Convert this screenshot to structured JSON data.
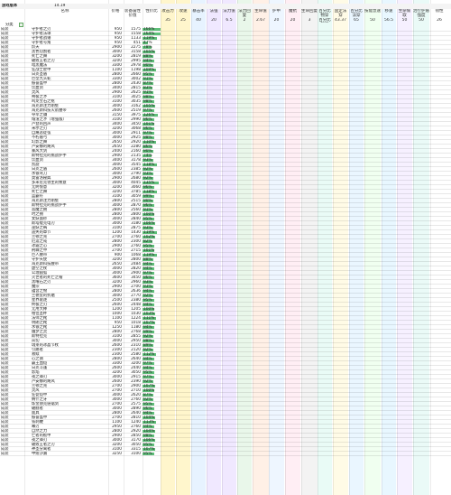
{
  "sheet": {
    "title": "游戏版本",
    "version": "14.19",
    "filter_label": "分类",
    "filter_icon": "filter-dropdown-icon",
    "colors": {
      "bar_green": "#5fbf7a",
      "header_bg": "#f4f4f4"
    }
  },
  "headers": [
    "名称",
    "价格",
    "装备属性价值",
    "性价比",
    "攻击力",
    "攻速",
    "暴击率",
    "法强",
    "法力值",
    "法力回复",
    "生命值",
    "护甲",
    "魔抗",
    "生命回复",
    "百分比物穿",
    "固定法穿",
    "百分比法穿",
    "技能急速",
    "移速",
    "生命偷取",
    "治疗护盾强度",
    "韧性"
  ],
  "summary": [
    "",
    "",
    "",
    "",
    "35",
    "25",
    "40",
    "20",
    "6.5",
    "2",
    "2.67",
    "20",
    "20",
    "3",
    "百分比物穿",
    "43.37",
    "65",
    "50",
    "56.5",
    "50",
    "50",
    "26"
  ],
  "rows": [
    {
      "name": "守护者之刃",
      "cost": "950",
      "val": "1575",
      "pct": "166%",
      "pv": "166"
    },
    {
      "name": "守护者法球",
      "cost": "950",
      "val": "1558",
      "pct": "164%",
      "pv": "164"
    },
    {
      "name": "守护者战锤",
      "cost": "950",
      "val": "1133",
      "pct": "119%",
      "pv": "119"
    },
    {
      "name": "守护者号角",
      "cost": "950",
      "val": "451",
      "pct": "47%",
      "pv": "47"
    },
    {
      "name": "炽天",
      "cost": "2900",
      "val": "2275",
      "pct": "78%",
      "pv": "78"
    },
    {
      "name": "黑色切割者",
      "cost": "3000",
      "val": "3158",
      "pct": "105%",
      "pv": "105"
    },
    {
      "name": "死亡之舞",
      "cost": "3200",
      "val": "2819",
      "pct": "88%",
      "pv": "88"
    },
    {
      "name": "破败王者之刃",
      "cost": "3200",
      "val": "2995",
      "pct": "94%",
      "pv": "94"
    },
    {
      "name": "暗黑魔法",
      "cost": "3300",
      "val": "2978",
      "pct": "90%",
      "pv": "90"
    },
    {
      "name": "狂战士胫甲",
      "cost": "1100",
      "val": "1198",
      "pct": "109%",
      "pv": "109"
    },
    {
      "name": "日炎圣盾",
      "cost": "2800",
      "val": "2660",
      "pct": "95%",
      "pv": "95"
    },
    {
      "name": "巨型九头蛇",
      "cost": "3300",
      "val": "3002",
      "pct": "91%",
      "pv": "91"
    },
    {
      "name": "振奋盔甲",
      "cost": "2800",
      "val": "2430",
      "pct": "87%",
      "pv": "87"
    },
    {
      "name": "饮血剑",
      "cost": "3400",
      "val": "2815",
      "pct": "83%",
      "pv": "83"
    },
    {
      "name": "灵风",
      "cost": "2900",
      "val": "2625",
      "pct": "91%",
      "pv": "91"
    },
    {
      "name": "朔极之矛",
      "cost": "3100",
      "val": "3025",
      "pct": "98%",
      "pv": "98"
    },
    {
      "name": "鸣龙宝石之枢",
      "cost": "3100",
      "val": "3035",
      "pct": "98%",
      "pv": "98"
    },
    {
      "name": "海克斯注力刚壁",
      "cost": "3000",
      "val": "3162",
      "pct": "105%",
      "pv": "105"
    },
    {
      "name": "海克斯科技火箭腰带",
      "cost": "2600",
      "val": "2519",
      "pct": "97%",
      "pv": "97"
    },
    {
      "name": "夺萃之镰",
      "cost": "3150",
      "val": "3975",
      "pct": "126%",
      "pv": "126"
    },
    {
      "name": "熔渣之矛（增强版）",
      "cost": "3100",
      "val": "2990",
      "pct": "96%",
      "pv": "96"
    },
    {
      "name": "卢登的回声",
      "cost": "3400",
      "val": "3450",
      "pct": "101%",
      "pv": "101"
    },
    {
      "name": "米尔之刃",
      "cost": "3200",
      "val": "3068",
      "pct": "96%",
      "pv": "96"
    },
    {
      "name": "自蔑恶徒弦",
      "cost": "3000",
      "val": "2911",
      "pct": "97%",
      "pv": "97"
    },
    {
      "name": "不朽盾弓",
      "cost": "3000",
      "val": "2925",
      "pct": "98%",
      "pv": "98"
    },
    {
      "name": "幻影之舞",
      "cost": "2650",
      "val": "2920",
      "pct": "110%",
      "pv": "110"
    },
    {
      "name": "卢安娜的飓风",
      "cost": "2650",
      "val": "2280",
      "pct": "86%",
      "pv": "86"
    },
    {
      "name": "暴风大剑",
      "cost": "2400",
      "val": "2160",
      "pct": "90%",
      "pv": "90"
    },
    {
      "name": "斯特拉克的挑战护手",
      "cost": "2900",
      "val": "2135",
      "pct": "74%",
      "pv": "74"
    },
    {
      "name": "饮血剑",
      "cost": "3400",
      "val": "3178",
      "pct": "93%",
      "pv": "93"
    },
    {
      "name": "凯旋",
      "cost": "3000",
      "val": "3545",
      "pct": "118%",
      "pv": "118"
    },
    {
      "name": "日炎之盾",
      "cost": "2600",
      "val": "2385",
      "pct": "92%",
      "pv": "92"
    },
    {
      "name": "水银弯刀",
      "cost": "3000",
      "val": "2790",
      "pct": "93%",
      "pv": "93"
    },
    {
      "name": "莫雷洛秘典",
      "cost": "2900",
      "val": "2680",
      "pct": "92%",
      "pv": "92"
    },
    {
      "name": "多米尼克领主的致意",
      "cost": "3000",
      "val": "4045",
      "pct": "135%",
      "pv": "135"
    },
    {
      "name": "无终恨意",
      "cost": "3200",
      "val": "3060",
      "pct": "96%",
      "pv": "96"
    },
    {
      "name": "死亡之舞",
      "cost": "3200",
      "val": "3785",
      "pct": "118%",
      "pv": "118"
    },
    {
      "name": "蓝霸符",
      "cost": "3100",
      "val": "3059",
      "pct": "99%",
      "pv": "99"
    },
    {
      "name": "海克斯注力刚壁",
      "cost": "2800",
      "val": "2515",
      "pct": "90%",
      "pv": "90"
    },
    {
      "name": "斯特拉克的挑战护手",
      "cost": "3000",
      "val": "2870",
      "pct": "96%",
      "pv": "96"
    },
    {
      "name": "恶魔之拥",
      "cost": "2800",
      "val": "2560",
      "pct": "91%",
      "pv": "91"
    },
    {
      "name": "时之拥",
      "cost": "2800",
      "val": "2800",
      "pct": "100%",
      "pv": "100"
    },
    {
      "name": "女妖面纱",
      "cost": "3000",
      "val": "2840",
      "pct": "95%",
      "pv": "95"
    },
    {
      "name": "斯塔缇克电刃",
      "cost": "3000",
      "val": "3180",
      "pct": "106%",
      "pv": "106"
    },
    {
      "name": "巫妖之祸",
      "cost": "3100",
      "val": "2875",
      "pct": "93%",
      "pv": "93"
    },
    {
      "name": "遗失的章节",
      "cost": "1200",
      "val": "1430",
      "pct": "119%",
      "pv": "119"
    },
    {
      "name": "兰顿之兆",
      "cost": "2700",
      "val": "2760",
      "pct": "102%",
      "pv": "102"
    },
    {
      "name": "厄运之戒",
      "cost": "2800",
      "val": "2300",
      "pct": "82%",
      "pv": "82"
    },
    {
      "name": "冰霜之心",
      "cost": "2900",
      "val": "2760",
      "pct": "95%",
      "pv": "95"
    },
    {
      "name": "荆棘之甲",
      "cost": "2700",
      "val": "2715",
      "pct": "101%",
      "pv": "101"
    },
    {
      "name": "巨人腰带",
      "cost": "900",
      "val": "1068",
      "pct": "119%",
      "pv": "119"
    },
    {
      "name": "守护天使",
      "cost": "3200",
      "val": "2800",
      "pct": "88%",
      "pv": "88"
    },
    {
      "name": "海克斯科技腰带",
      "cost": "2650",
      "val": "2484",
      "pct": "94%",
      "pv": "94"
    },
    {
      "name": "虚空之杖",
      "cost": "3000",
      "val": "2820",
      "pct": "94%",
      "pv": "94"
    },
    {
      "name": "公理圆弧",
      "cost": "3000",
      "val": "2900",
      "pct": "97%",
      "pv": "97"
    },
    {
      "name": "灭世者的死亡之帽",
      "cost": "3600",
      "val": "3450",
      "pct": "96%",
      "pv": "96"
    },
    {
      "name": "黑曜石之刃",
      "cost": "3200",
      "val": "2960",
      "pct": "93%",
      "pv": "93"
    },
    {
      "name": "魔宗",
      "cost": "2900",
      "val": "2700",
      "pct": "93%",
      "pv": "93"
    },
    {
      "name": "蕴含之物",
      "cost": "2800",
      "val": "2636",
      "pct": "94%",
      "pv": "94"
    },
    {
      "name": "兰德里的折磨",
      "cost": "3000",
      "val": "2770",
      "pct": "92%",
      "pv": "92"
    },
    {
      "name": "星界驱逐",
      "cost": "2500",
      "val": "2380",
      "pct": "95%",
      "pv": "95"
    },
    {
      "name": "终极之刃",
      "cost": "2600",
      "val": "2448",
      "pct": "94%",
      "pv": "94"
    },
    {
      "name": "无用大棒",
      "cost": "1200",
      "val": "1205",
      "pct": "100%",
      "pv": "100"
    },
    {
      "name": "相位圣杯",
      "cost": "1000",
      "val": "1030",
      "pct": "103%",
      "pv": "103"
    },
    {
      "name": "法师之靴",
      "cost": "1100",
      "val": "1224",
      "pct": "111%",
      "pv": "111"
    },
    {
      "name": "明朗之靴",
      "cost": "950",
      "val": "1018",
      "pct": "107%",
      "pv": "107"
    },
    {
      "name": "水银之靴",
      "cost": "1250",
      "val": "1180",
      "pct": "94%",
      "pv": "94"
    },
    {
      "name": "幽梦之灵",
      "cost": "2800",
      "val": "2768",
      "pct": "99%",
      "pv": "99"
    },
    {
      "name": "斯特拉克",
      "cost": "3100",
      "val": "2855",
      "pct": "92%",
      "pv": "92"
    },
    {
      "name": "岚切",
      "cost": "3000",
      "val": "2950",
      "pct": "98%",
      "pv": "98"
    },
    {
      "name": "瑞莱的冰晶节杖",
      "cost": "2600",
      "val": "2310",
      "pct": "89%",
      "pv": "89"
    },
    {
      "name": "引路者",
      "cost": "2300",
      "val": "2120",
      "pct": "92%",
      "pv": "92"
    },
    {
      "name": "救赎",
      "cost": "2300",
      "val": "2580",
      "pct": "112%",
      "pv": "112"
    },
    {
      "name": "心之钢",
      "cost": "2800",
      "val": "2640",
      "pct": "94%",
      "pv": "94"
    },
    {
      "name": "霸王血铠",
      "cost": "3300",
      "val": "3200",
      "pct": "97%",
      "pv": "97"
    },
    {
      "name": "日炎斗篷",
      "cost": "2600",
      "val": "2440",
      "pct": "94%",
      "pv": "94"
    },
    {
      "name": "影焰",
      "cost": "3200",
      "val": "3050",
      "pct": "95%",
      "pv": "95"
    },
    {
      "name": "夜之锋刃",
      "cost": "3000",
      "val": "2915",
      "pct": "97%",
      "pv": "97"
    },
    {
      "name": "卢安娜的飓风",
      "cost": "2600",
      "val": "2390",
      "pct": "92%",
      "pv": "92"
    },
    {
      "name": "兰顿之兆",
      "cost": "2700",
      "val": "2900",
      "pct": "107%",
      "pv": "107"
    },
    {
      "name": "灵风",
      "cost": "2700",
      "val": "2710",
      "pct": "100%",
      "pv": "100"
    },
    {
      "name": "狂徒铠甲",
      "cost": "3000",
      "val": "2620",
      "pct": "87%",
      "pv": "87"
    },
    {
      "name": "纳什之牙",
      "cost": "3000",
      "val": "2760",
      "pct": "92%",
      "pv": "92"
    },
    {
      "name": "炼金朋克链锯剑",
      "cost": "2700",
      "val": "2575",
      "pct": "95%",
      "pv": "95"
    },
    {
      "name": "破舰者",
      "cost": "3000",
      "val": "2890",
      "pct": "96%",
      "pv": "96"
    },
    {
      "name": "面具",
      "cost": "2800",
      "val": "2640",
      "pct": "94%",
      "pv": "94"
    },
    {
      "name": "振奋盔甲",
      "cost": "2700",
      "val": "2810",
      "pct": "104%",
      "pv": "104"
    },
    {
      "name": "铁刺鞭",
      "cost": "1100",
      "val": "1240",
      "pct": "113%",
      "pv": "113"
    },
    {
      "name": "幕刃",
      "cost": "2950",
      "val": "2760",
      "pct": "94%",
      "pv": "94"
    },
    {
      "name": "自然之力",
      "cost": "2800",
      "val": "2920",
      "pct": "104%",
      "pv": "104"
    },
    {
      "name": "亡者的板甲",
      "cost": "2900",
      "val": "2850",
      "pct": "98%",
      "pv": "98"
    },
    {
      "name": "夜之锋刃",
      "cost": "3000",
      "val": "3170",
      "pct": "106%",
      "pv": "106"
    },
    {
      "name": "破败王者之刃",
      "cost": "3200",
      "val": "3050",
      "pct": "95%",
      "pv": "95"
    },
    {
      "name": "神圣分离者",
      "cost": "3100",
      "val": "3315",
      "pct": "107%",
      "pv": "107"
    },
    {
      "name": "中娅沙漏",
      "cost": "3250",
      "val": "3100",
      "pct": "95%",
      "pv": "95"
    }
  ]
}
